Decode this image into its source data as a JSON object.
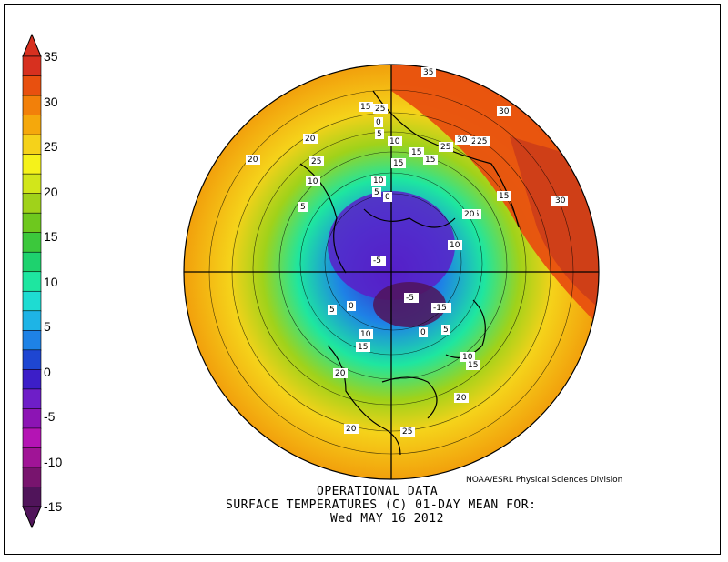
{
  "colorbar": {
    "ticks": [
      "35",
      "30",
      "25",
      "20",
      "15",
      "10",
      "5",
      "0",
      "-5",
      "-10",
      "-15"
    ],
    "colors": [
      "#d7301f",
      "#e8500f",
      "#f2800a",
      "#f5a80c",
      "#f5d21a",
      "#f5f21a",
      "#d2e61a",
      "#a0d21a",
      "#6ec81e",
      "#3cc83c",
      "#1ed26e",
      "#1ee6a0",
      "#1edcd2",
      "#1eb4e6",
      "#1e82e6",
      "#1e46d2",
      "#3c1ec8",
      "#6e1ec8",
      "#8c14b4",
      "#b414b4",
      "#a01496",
      "#78146e",
      "#50145a"
    ]
  },
  "contour_labels": [
    "35",
    "30",
    "30",
    "25",
    "25",
    "15",
    "0",
    "5",
    "20",
    "10",
    "15",
    "25",
    "30",
    "25",
    "15",
    "20",
    "15",
    "10",
    "10",
    "5",
    "0",
    "5",
    "25",
    "20",
    "10",
    "15",
    "30",
    "-5",
    "-5",
    "-15",
    "0",
    "5",
    "0",
    "10",
    "5",
    "15",
    "10",
    "15",
    "20",
    "20",
    "20",
    "25",
    "25"
  ],
  "credit": "NOAA/ESRL Physical Sciences Division",
  "caption": {
    "line1": "OPERATIONAL DATA",
    "line2": "SURFACE TEMPERATURES (C)   01-DAY MEAN FOR:",
    "line3": "Wed MAY 16 2012"
  }
}
